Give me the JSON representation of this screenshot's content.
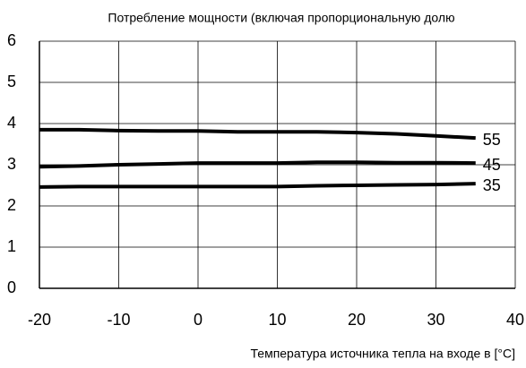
{
  "chart_data": {
    "type": "line",
    "title": "Потребление мощности (включая пропорциональную долю",
    "x_label": "Температура источника тепла на входе в [°C]",
    "x": [
      -20,
      -15,
      -10,
      -5,
      0,
      5,
      10,
      15,
      20,
      25,
      30,
      35
    ],
    "series": [
      {
        "name": "55",
        "color": "#000000",
        "values": [
          3.85,
          3.85,
          3.83,
          3.82,
          3.82,
          3.8,
          3.8,
          3.8,
          3.78,
          3.75,
          3.7,
          3.65
        ]
      },
      {
        "name": "45",
        "color": "#000000",
        "values": [
          2.95,
          2.97,
          3.0,
          3.02,
          3.04,
          3.04,
          3.04,
          3.06,
          3.06,
          3.05,
          3.05,
          3.04
        ]
      },
      {
        "name": "35",
        "color": "#000000",
        "values": [
          2.46,
          2.47,
          2.47,
          2.47,
          2.47,
          2.47,
          2.47,
          2.49,
          2.5,
          2.51,
          2.52,
          2.54
        ]
      }
    ],
    "xlim": [
      -20,
      40
    ],
    "xticks": [
      -20,
      -10,
      0,
      10,
      20,
      30,
      40
    ],
    "ylim": [
      0,
      6
    ],
    "yticks": [
      0,
      1,
      2,
      3,
      4,
      5,
      6
    ],
    "grid": true
  }
}
